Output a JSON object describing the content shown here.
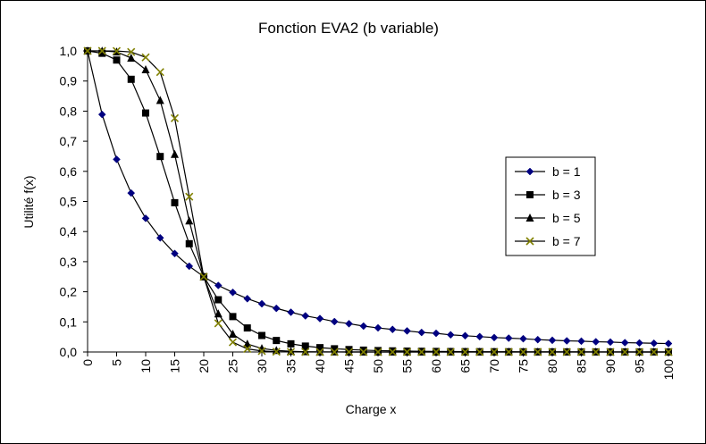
{
  "chart_data": {
    "type": "line",
    "title": "Fonction EVA2 (b variable)",
    "xlabel": "Charge x",
    "ylabel": "Utilité f(x)",
    "xlim": [
      0,
      100
    ],
    "ylim": [
      0,
      1
    ],
    "xticks": [
      "0",
      "5",
      "10",
      "15",
      "20",
      "25",
      "30",
      "35",
      "40",
      "45",
      "50",
      "55",
      "60",
      "65",
      "70",
      "75",
      "80",
      "85",
      "90",
      "95",
      "100"
    ],
    "yticks": [
      "0,0",
      "0,1",
      "0,2",
      "0,3",
      "0,4",
      "0,5",
      "0,6",
      "0,7",
      "0,8",
      "0,9",
      "1,0"
    ],
    "x": [
      0,
      2.5,
      5,
      7.5,
      10,
      12.5,
      15,
      17.5,
      20,
      22.5,
      25,
      27.5,
      30,
      32.5,
      35,
      37.5,
      40,
      42.5,
      45,
      47.5,
      50,
      52.5,
      55,
      57.5,
      60,
      62.5,
      65,
      67.5,
      70,
      72.5,
      75,
      77.5,
      80,
      82.5,
      85,
      87.5,
      90,
      92.5,
      95,
      97.5,
      100
    ],
    "series": [
      {
        "name": "b = 1",
        "color": "#000080",
        "marker": "diamond",
        "values": [
          1.0,
          0.789,
          0.64,
          0.528,
          0.444,
          0.379,
          0.327,
          0.285,
          0.25,
          0.221,
          0.198,
          0.177,
          0.16,
          0.145,
          0.132,
          0.12,
          0.111,
          0.101,
          0.094,
          0.086,
          0.08,
          0.075,
          0.07,
          0.065,
          0.062,
          0.057,
          0.054,
          0.051,
          0.048,
          0.046,
          0.044,
          0.041,
          0.039,
          0.037,
          0.036,
          0.034,
          0.033,
          0.031,
          0.03,
          0.029,
          0.028
        ]
      },
      {
        "name": "b = 3",
        "color": "#000000",
        "marker": "square",
        "values": [
          1.0,
          0.9922,
          0.9697,
          0.9057,
          0.7937,
          0.6493,
          0.4959,
          0.3596,
          0.25,
          0.1735,
          0.1176,
          0.0798,
          0.0548,
          0.0382,
          0.0271,
          0.0196,
          0.0144,
          0.0107,
          0.0081,
          0.0061,
          0.0047,
          0.0037,
          0.0029,
          0.0023,
          0.0018,
          0.0015,
          0.0012,
          0.001,
          0.0008,
          0.0007,
          0.0006,
          0.0005,
          0.0004,
          0.0003,
          0.0003,
          0.0002,
          0.0002,
          0.0002,
          0.0001,
          0.0001,
          0.0001
        ]
      },
      {
        "name": "b = 5",
        "color": "#000000",
        "marker": "triangle",
        "values": [
          1.0,
          0.9998,
          0.9968,
          0.9764,
          0.9377,
          0.8356,
          0.6564,
          0.4355,
          0.25,
          0.1267,
          0.0593,
          0.0265,
          0.0116,
          0.0051,
          0.0023,
          0.001,
          0.0005,
          0.0002,
          0.0001,
          0.0001,
          0,
          0,
          0,
          0,
          0,
          0,
          0,
          0,
          0,
          0,
          0,
          0,
          0,
          0,
          0,
          0,
          0,
          0,
          0,
          0,
          0
        ]
      },
      {
        "name": "b = 7",
        "color": "#808000",
        "marker": "x",
        "values": [
          1.0,
          1.0,
          0.9997,
          0.9964,
          0.9787,
          0.9298,
          0.7765,
          0.5157,
          0.25,
          0.0951,
          0.0325,
          0.0104,
          0.0033,
          0.001,
          0.0003,
          0.0001,
          0,
          0,
          0,
          0,
          0,
          0,
          0,
          0,
          0,
          0,
          0,
          0,
          0,
          0,
          0,
          0,
          0,
          0,
          0,
          0,
          0,
          0,
          0,
          0,
          0
        ]
      }
    ],
    "legend": "right"
  }
}
